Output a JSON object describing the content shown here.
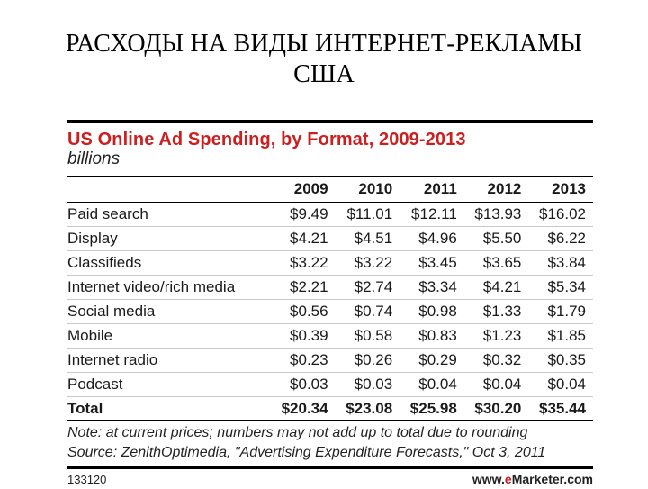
{
  "slide": {
    "title_line1": "РАСХОДЫ НА ВИДЫ ИНТЕРНЕТ-РЕКЛАМЫ",
    "title_line2": "США"
  },
  "chart_data": {
    "type": "table",
    "title": "US Online Ad Spending, by Format, 2009-2013",
    "subtitle": "billions",
    "columns": [
      "2009",
      "2010",
      "2011",
      "2012",
      "2013"
    ],
    "rows": [
      {
        "label": "Paid search",
        "values": [
          "$9.49",
          "$11.01",
          "$12.11",
          "$13.93",
          "$16.02"
        ]
      },
      {
        "label": "Display",
        "values": [
          "$4.21",
          "$4.51",
          "$4.96",
          "$5.50",
          "$6.22"
        ]
      },
      {
        "label": "Classifieds",
        "values": [
          "$3.22",
          "$3.22",
          "$3.45",
          "$3.65",
          "$3.84"
        ]
      },
      {
        "label": "Internet video/rich media",
        "values": [
          "$2.21",
          "$2.74",
          "$3.34",
          "$4.21",
          "$5.34"
        ]
      },
      {
        "label": "Social media",
        "values": [
          "$0.56",
          "$0.74",
          "$0.98",
          "$1.33",
          "$1.79"
        ]
      },
      {
        "label": "Mobile",
        "values": [
          "$0.39",
          "$0.58",
          "$0.83",
          "$1.23",
          "$1.85"
        ]
      },
      {
        "label": "Internet radio",
        "values": [
          "$0.23",
          "$0.26",
          "$0.29",
          "$0.32",
          "$0.35"
        ]
      },
      {
        "label": "Podcast",
        "values": [
          "$0.03",
          "$0.03",
          "$0.04",
          "$0.04",
          "$0.04"
        ]
      }
    ],
    "total": {
      "label": "Total",
      "values": [
        "$20.34",
        "$23.08",
        "$25.98",
        "$30.20",
        "$35.44"
      ]
    },
    "note": "Note: at current prices; numbers may not add up to total due to rounding",
    "source": "Source: ZenithOptimedia, \"Advertising Expenditure Forecasts,\" Oct 3, 2011",
    "footer_id": "133120",
    "footer_brand_prefix": "www.",
    "footer_brand_e": "e",
    "footer_brand_suffix": "Marketer.com",
    "colors": {
      "title": "#cc1f1f",
      "text": "#1a1a1a",
      "rule": "#000000"
    }
  }
}
